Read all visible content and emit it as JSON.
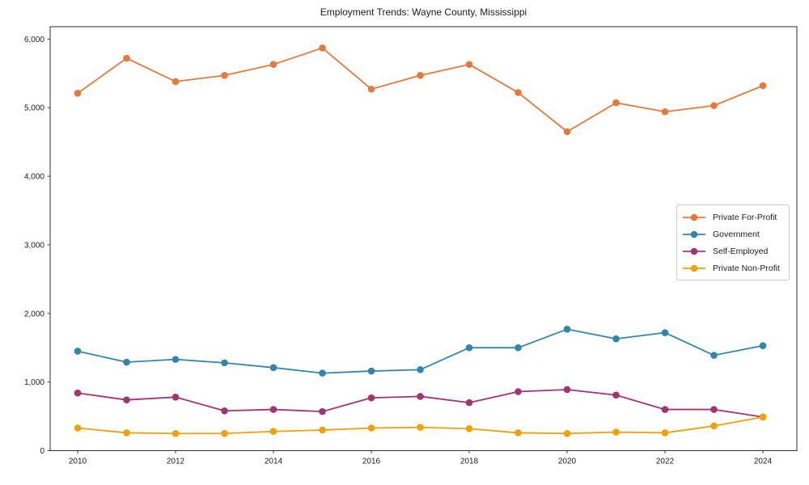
{
  "title": "Employment Trends: Wayne County, Mississippi",
  "chart_data": {
    "type": "line",
    "title": "Employment Trends: Wayne County, Mississippi",
    "xlabel": "",
    "ylabel": "",
    "x": [
      2010,
      2011,
      2012,
      2013,
      2014,
      2015,
      2016,
      2017,
      2018,
      2019,
      2020,
      2021,
      2022,
      2023,
      2024
    ],
    "xticks": [
      2010,
      2012,
      2014,
      2016,
      2018,
      2020,
      2022,
      2024
    ],
    "ylim": [
      0,
      6000
    ],
    "ytick_step": 1000,
    "ytick_labels": [
      "0",
      "1,000",
      "2,000",
      "3,000",
      "4,000",
      "5,000",
      "6,000"
    ],
    "grid": false,
    "legend_position": "center-right-inside",
    "axis_color": "#2e2e2e",
    "text_color": "#1a1a1a",
    "series": [
      {
        "name": "Private For-Profit",
        "color": "#e5793b",
        "values": [
          5210,
          5720,
          5380,
          5470,
          5630,
          5870,
          5270,
          5470,
          5630,
          5220,
          4650,
          5070,
          4940,
          5030,
          5320
        ]
      },
      {
        "name": "Government",
        "color": "#3286a8",
        "values": [
          1450,
          1290,
          1330,
          1280,
          1210,
          1130,
          1160,
          1180,
          1500,
          1500,
          1770,
          1630,
          1720,
          1390,
          1530
        ]
      },
      {
        "name": "Self-Employed",
        "color": "#a23472",
        "values": [
          840,
          740,
          780,
          580,
          600,
          570,
          770,
          790,
          700,
          860,
          890,
          810,
          600,
          600,
          490
        ]
      },
      {
        "name": "Private Non-Profit",
        "color": "#f2a007",
        "values": [
          330,
          260,
          250,
          250,
          280,
          300,
          330,
          340,
          320,
          260,
          250,
          270,
          260,
          360,
          490
        ]
      }
    ]
  }
}
